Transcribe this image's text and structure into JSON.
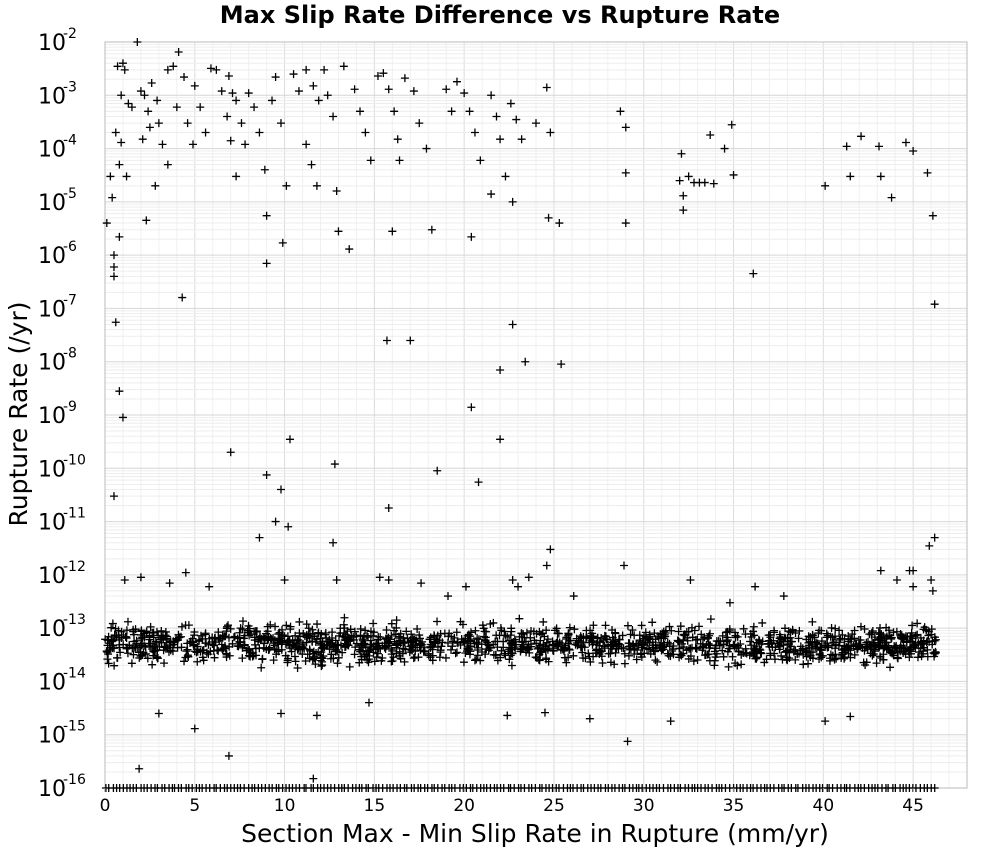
{
  "chart_data": {
    "type": "scatter",
    "title": "Max Slip Rate Difference vs Rupture Rate",
    "xlabel": "Section Max - Min Slip Rate in Rupture (mm/yr)",
    "ylabel": "Rupture Rate (/yr)",
    "xlim": [
      0,
      48
    ],
    "ylim": [
      1e-16,
      0.01
    ],
    "y_scale": "log",
    "grid": true,
    "marker": "plus",
    "marker_color": "#000000",
    "xticks": [
      {
        "value": 0,
        "label": "0"
      },
      {
        "value": 5,
        "label": "5"
      },
      {
        "value": 10,
        "label": "10"
      },
      {
        "value": 15,
        "label": "15"
      },
      {
        "value": 20,
        "label": "20"
      },
      {
        "value": 25,
        "label": "25"
      },
      {
        "value": 30,
        "label": "30"
      },
      {
        "value": 35,
        "label": "35"
      },
      {
        "value": 40,
        "label": "40"
      },
      {
        "value": 45,
        "label": "45"
      }
    ],
    "yticks": [
      {
        "value": 1e-16,
        "base": "10",
        "exp": "-16"
      },
      {
        "value": 1e-15,
        "base": "10",
        "exp": "-15"
      },
      {
        "value": 1e-14,
        "base": "10",
        "exp": "-14"
      },
      {
        "value": 1e-13,
        "base": "10",
        "exp": "-13"
      },
      {
        "value": 1e-12,
        "base": "10",
        "exp": "-12"
      },
      {
        "value": 1e-11,
        "base": "10",
        "exp": "-11"
      },
      {
        "value": 1e-10,
        "base": "10",
        "exp": "-10"
      },
      {
        "value": 1e-09,
        "base": "10",
        "exp": "-9"
      },
      {
        "value": 1e-08,
        "base": "10",
        "exp": "-8"
      },
      {
        "value": 1e-07,
        "base": "10",
        "exp": "-7"
      },
      {
        "value": 1e-06,
        "base": "10",
        "exp": "-6"
      },
      {
        "value": 1e-05,
        "base": "10",
        "exp": "-5"
      },
      {
        "value": 0.0001,
        "base": "10",
        "exp": "-4"
      },
      {
        "value": 0.001,
        "base": "10",
        "exp": "-3"
      },
      {
        "value": 0.01,
        "base": "10",
        "exp": "-2"
      }
    ],
    "points": [
      [
        0.1,
        4e-06
      ],
      [
        0.3,
        3e-05
      ],
      [
        0.4,
        1.2e-05
      ],
      [
        0.5,
        1e-06
      ],
      [
        0.5,
        6e-07
      ],
      [
        0.5,
        4e-07
      ],
      [
        0.6,
        5.5e-08
      ],
      [
        0.8,
        2.2e-06
      ],
      [
        0.8,
        2.8e-09
      ],
      [
        1.0,
        9e-10
      ],
      [
        0.5,
        3e-11
      ],
      [
        0.7,
        0.0035
      ],
      [
        1.0,
        0.004
      ],
      [
        1.1,
        0.003
      ],
      [
        0.9,
        0.001
      ],
      [
        1.3,
        0.0007
      ],
      [
        0.6,
        0.0002
      ],
      [
        0.9,
        0.00013
      ],
      [
        0.8,
        5e-05
      ],
      [
        1.2,
        3e-05
      ],
      [
        1.5,
        0.0006
      ],
      [
        1.8,
        0.01
      ],
      [
        2.0,
        0.0012
      ],
      [
        2.2,
        0.001
      ],
      [
        2.4,
        0.0005
      ],
      [
        2.5,
        0.00025
      ],
      [
        2.1,
        0.00015
      ],
      [
        2.3,
        4.5e-06
      ],
      [
        2.6,
        0.0017
      ],
      [
        2.9,
        0.0008
      ],
      [
        3.0,
        0.0003
      ],
      [
        3.2,
        0.00012
      ],
      [
        3.5,
        5e-05
      ],
      [
        2.8,
        2e-05
      ],
      [
        3.5,
        0.003
      ],
      [
        3.8,
        0.0035
      ],
      [
        4.1,
        0.0065
      ],
      [
        4.4,
        0.0022
      ],
      [
        4.0,
        0.0006
      ],
      [
        4.6,
        0.0003
      ],
      [
        4.9,
        0.00012
      ],
      [
        4.3,
        1.6e-07
      ],
      [
        5.0,
        0.0015
      ],
      [
        5.3,
        0.0006
      ],
      [
        5.6,
        0.0002
      ],
      [
        5.9,
        0.0032
      ],
      [
        6.2,
        0.003
      ],
      [
        6.5,
        0.0012
      ],
      [
        6.8,
        0.0004
      ],
      [
        7.0,
        0.00014
      ],
      [
        6.9,
        0.0023
      ],
      [
        7.1,
        0.0011
      ],
      [
        7.3,
        0.0008
      ],
      [
        7.6,
        0.0003
      ],
      [
        7.8,
        0.00012
      ],
      [
        7.3,
        3e-05
      ],
      [
        7.0,
        2e-10
      ],
      [
        8.0,
        0.0011
      ],
      [
        8.3,
        0.0006
      ],
      [
        8.6,
        0.0002
      ],
      [
        8.9,
        4e-05
      ],
      [
        9.0,
        5.5e-06
      ],
      [
        9.0,
        7e-07
      ],
      [
        9.3,
        0.0008
      ],
      [
        9.5,
        0.0022
      ],
      [
        9.8,
        0.0003
      ],
      [
        9.9,
        1.7e-06
      ],
      [
        10.1,
        2e-05
      ],
      [
        9.0,
        7.5e-11
      ],
      [
        9.8,
        4e-11
      ],
      [
        10.3,
        3.5e-10
      ],
      [
        10.5,
        0.0025
      ],
      [
        10.8,
        0.0012
      ],
      [
        11.2,
        0.003
      ],
      [
        11.6,
        0.0015
      ],
      [
        11.9,
        0.0008
      ],
      [
        11.2,
        0.00012
      ],
      [
        11.5,
        5e-05
      ],
      [
        11.8,
        2e-05
      ],
      [
        12.2,
        0.003
      ],
      [
        12.4,
        0.001
      ],
      [
        12.7,
        0.0004
      ],
      [
        12.9,
        1.6e-05
      ],
      [
        13.0,
        2.8e-06
      ],
      [
        13.3,
        0.0035
      ],
      [
        13.6,
        1.3e-06
      ],
      [
        13.9,
        0.0013
      ],
      [
        14.2,
        0.0005
      ],
      [
        14.5,
        0.0002
      ],
      [
        14.8,
        6e-05
      ],
      [
        12.8,
        1.2e-10
      ],
      [
        15.2,
        0.0023
      ],
      [
        15.5,
        0.0026
      ],
      [
        15.8,
        0.0013
      ],
      [
        16.1,
        0.0005
      ],
      [
        16.3,
        0.00015
      ],
      [
        16.0,
        2.8e-06
      ],
      [
        15.7,
        2.5e-08
      ],
      [
        17.0,
        2.5e-08
      ],
      [
        15.8,
        1.8e-11
      ],
      [
        16.4,
        6e-05
      ],
      [
        16.7,
        0.0021
      ],
      [
        17.2,
        0.0012
      ],
      [
        17.5,
        0.0003
      ],
      [
        17.9,
        0.0001
      ],
      [
        18.2,
        3e-06
      ],
      [
        18.5,
        9e-11
      ],
      [
        19.0,
        0.0013
      ],
      [
        19.3,
        0.0005
      ],
      [
        19.6,
        0.0018
      ],
      [
        20.0,
        0.0011
      ],
      [
        20.3,
        0.0005
      ],
      [
        20.6,
        0.0002
      ],
      [
        20.9,
        6e-05
      ],
      [
        20.4,
        2.2e-06
      ],
      [
        20.4,
        1.4e-09
      ],
      [
        20.8,
        5.5e-11
      ],
      [
        21.5,
        0.001
      ],
      [
        21.8,
        0.0004
      ],
      [
        22.0,
        0.00015
      ],
      [
        22.3,
        3e-05
      ],
      [
        21.5,
        1.4e-05
      ],
      [
        22.0,
        7e-09
      ],
      [
        22.0,
        3.5e-10
      ],
      [
        22.6,
        0.0007
      ],
      [
        22.9,
        0.00035
      ],
      [
        23.2,
        0.00015
      ],
      [
        22.7,
        1e-05
      ],
      [
        22.7,
        5e-08
      ],
      [
        23.4,
        1e-08
      ],
      [
        24.0,
        0.0003
      ],
      [
        24.6,
        0.0014
      ],
      [
        24.8,
        0.0002
      ],
      [
        24.7,
        5e-06
      ],
      [
        25.3,
        4e-06
      ],
      [
        25.4,
        9e-09
      ],
      [
        28.7,
        0.0005
      ],
      [
        29.0,
        0.00025
      ],
      [
        29.0,
        3.5e-05
      ],
      [
        29.0,
        4e-06
      ],
      [
        32.1,
        8e-05
      ],
      [
        32.0,
        2.5e-05
      ],
      [
        32.2,
        1.3e-05
      ],
      [
        32.2,
        7e-06
      ],
      [
        32.5,
        3e-05
      ],
      [
        32.8,
        2.3e-05
      ],
      [
        33.1,
        2.3e-05
      ],
      [
        33.4,
        2.3e-05
      ],
      [
        33.7,
        0.00018
      ],
      [
        33.9,
        2.2e-05
      ],
      [
        34.9,
        0.00028
      ],
      [
        35.0,
        3.2e-05
      ],
      [
        34.5,
        0.0001
      ],
      [
        36.1,
        4.5e-07
      ],
      [
        40.1,
        2e-05
      ],
      [
        41.3,
        0.00011
      ],
      [
        41.5,
        3e-05
      ],
      [
        42.1,
        0.00017
      ],
      [
        43.1,
        0.00011
      ],
      [
        43.2,
        3e-05
      ],
      [
        43.8,
        1.2e-05
      ],
      [
        44.6,
        0.00013
      ],
      [
        45.0,
        9e-05
      ],
      [
        45.8,
        3.5e-05
      ],
      [
        46.1,
        5.5e-06
      ],
      [
        46.2,
        1.2e-07
      ],
      [
        45.9,
        3.5e-12
      ],
      [
        46.2,
        5e-12
      ],
      [
        24.8,
        3e-12
      ],
      [
        24.6,
        1.5e-12
      ],
      [
        28.9,
        1.5e-12
      ],
      [
        43.2,
        1.2e-12
      ],
      [
        44.8,
        1.2e-12
      ],
      [
        45.0,
        1.2e-12
      ],
      [
        10.2,
        8e-12
      ],
      [
        8.6,
        5e-12
      ],
      [
        9.5,
        1e-11
      ],
      [
        12.7,
        4e-12
      ],
      [
        1.1,
        8e-13
      ],
      [
        2.0,
        9e-13
      ],
      [
        3.6,
        7e-13
      ],
      [
        4.5,
        1.1e-12
      ],
      [
        5.8,
        6e-13
      ],
      [
        10.0,
        8e-13
      ],
      [
        12.9,
        8e-13
      ],
      [
        15.3,
        9e-13
      ],
      [
        15.8,
        8e-13
      ],
      [
        17.6,
        7e-13
      ],
      [
        19.1,
        4e-13
      ],
      [
        20.1,
        6e-13
      ],
      [
        22.7,
        8e-13
      ],
      [
        23.0,
        6e-13
      ],
      [
        23.6,
        9e-13
      ],
      [
        26.1,
        4e-13
      ],
      [
        32.6,
        8e-13
      ],
      [
        34.8,
        3e-13
      ],
      [
        36.2,
        6e-13
      ],
      [
        37.8,
        4e-13
      ],
      [
        44.1,
        8e-13
      ],
      [
        45.0,
        6e-13
      ],
      [
        46.0,
        8e-13
      ],
      [
        46.1,
        5e-13
      ],
      [
        1.9,
        2.3e-16
      ],
      [
        5.0,
        1.3e-15
      ],
      [
        6.9,
        4e-16
      ],
      [
        9.8,
        2.5e-15
      ],
      [
        11.6,
        1.5e-16
      ],
      [
        11.8,
        2.3e-15
      ],
      [
        22.4,
        2.3e-15
      ],
      [
        24.5,
        2.6e-15
      ],
      [
        27.0,
        2e-15
      ],
      [
        29.1,
        7.5e-16
      ],
      [
        31.5,
        1.8e-15
      ],
      [
        40.1,
        1.8e-15
      ],
      [
        41.5,
        2.2e-15
      ],
      [
        3.0,
        2.5e-15
      ],
      [
        14.7,
        4e-15
      ]
    ],
    "dense_band": {
      "x_range": [
        0,
        46.3
      ],
      "y_center": 5e-14,
      "count": 1600
    },
    "floor_row": {
      "x_range": [
        0,
        46.3
      ],
      "y": 1e-16,
      "count": 240
    }
  }
}
